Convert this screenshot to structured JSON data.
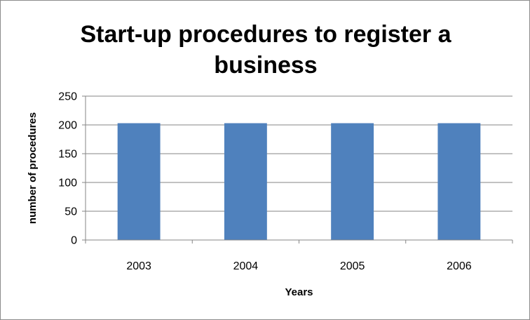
{
  "chart_data": {
    "type": "bar",
    "title": "Start-up procedures to register a business",
    "xlabel": "Years",
    "ylabel": "number of procedures",
    "categories": [
      "2003",
      "2004",
      "2005",
      "2006"
    ],
    "values": [
      203,
      203,
      203,
      203
    ],
    "ylim": [
      0,
      250
    ],
    "yticks": [
      0,
      50,
      100,
      150,
      200,
      250
    ],
    "grid": true,
    "legend": "none",
    "bar_color": "#4f81bd",
    "grid_color": "#868686"
  }
}
